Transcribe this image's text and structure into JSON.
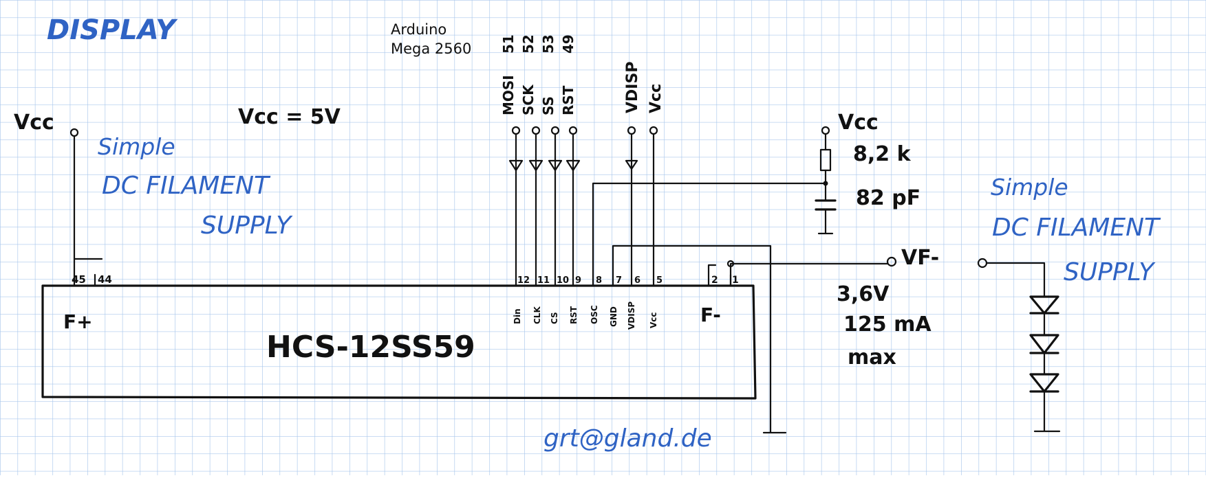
{
  "colors": {
    "grid": "#a9c7ec",
    "ink": "#111111",
    "blue_ink": "#2f63c4",
    "paper": "#ffffff"
  },
  "notes": {
    "title": "DISPLAY",
    "arduino_line1": "Arduino",
    "arduino_line2": "Mega 2560",
    "vcc_eq": "Vcc = 5V",
    "filament_left": [
      "Simple",
      "DC FILAMENT",
      "SUPPLY"
    ],
    "filament_right": [
      "Simple",
      "DC FILAMENT",
      "SUPPLY"
    ],
    "email": "grt@gland.de"
  },
  "arduino_pins": [
    "51",
    "52",
    "53",
    "49"
  ],
  "signals": [
    "MOSI",
    "SCK",
    "SS",
    "RST",
    "VDISP",
    "Vcc"
  ],
  "vcc_left": "Vcc",
  "rc": {
    "vcc": "Vcc",
    "resistor": "8,2 k",
    "capacitor": "82 pF"
  },
  "filament_terminal": {
    "label": "VF-",
    "voltage": "3,6V",
    "current": "125 mA",
    "max": "max"
  },
  "chip": {
    "name": "HCS-12SS59",
    "f_plus": "F+",
    "f_minus": "F-",
    "left_pins": [
      "45",
      "44"
    ],
    "pin_numbers": [
      "12",
      "11",
      "10",
      "9",
      "8",
      "7",
      "6",
      "5"
    ],
    "pin_names": [
      "Din",
      "CLK",
      "CS",
      "RST",
      "OSC",
      "GND",
      "VDISP",
      "Vcc"
    ],
    "right_pins": [
      "2",
      "1"
    ]
  }
}
